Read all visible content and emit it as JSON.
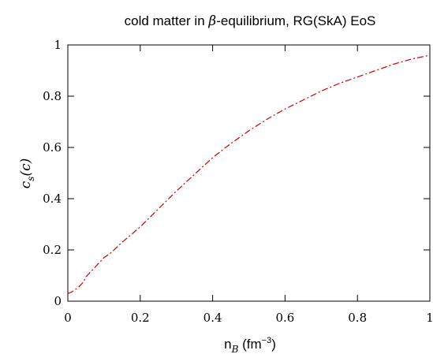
{
  "chart_data": {
    "type": "line",
    "title": "cold matter in β-equilibrium, RG(SkA) EoS",
    "xlabel": "n_B (fm^-3)",
    "ylabel": "c_s(c)",
    "xlim": [
      0,
      1
    ],
    "ylim": [
      0,
      1
    ],
    "x_ticks": [
      "0",
      "0.2",
      "0.4",
      "0.6",
      "0.8",
      "1"
    ],
    "y_ticks": [
      "0",
      "0.2",
      "0.4",
      "0.6",
      "0.8",
      "1"
    ],
    "grid": false,
    "series": [
      {
        "color": "#cc0000",
        "style": "dash-dot",
        "x": [
          0.0,
          0.01,
          0.02,
          0.03,
          0.04,
          0.045,
          0.05,
          0.06,
          0.08,
          0.1,
          0.12,
          0.15,
          0.2,
          0.25,
          0.3,
          0.35,
          0.4,
          0.45,
          0.5,
          0.55,
          0.6,
          0.65,
          0.7,
          0.75,
          0.8,
          0.85,
          0.9,
          0.95,
          1.0
        ],
        "y": [
          0.03,
          0.035,
          0.045,
          0.055,
          0.07,
          0.08,
          0.095,
          0.11,
          0.14,
          0.17,
          0.19,
          0.23,
          0.29,
          0.36,
          0.43,
          0.495,
          0.56,
          0.615,
          0.665,
          0.71,
          0.75,
          0.785,
          0.82,
          0.85,
          0.875,
          0.9,
          0.925,
          0.945,
          0.96
        ]
      }
    ]
  }
}
